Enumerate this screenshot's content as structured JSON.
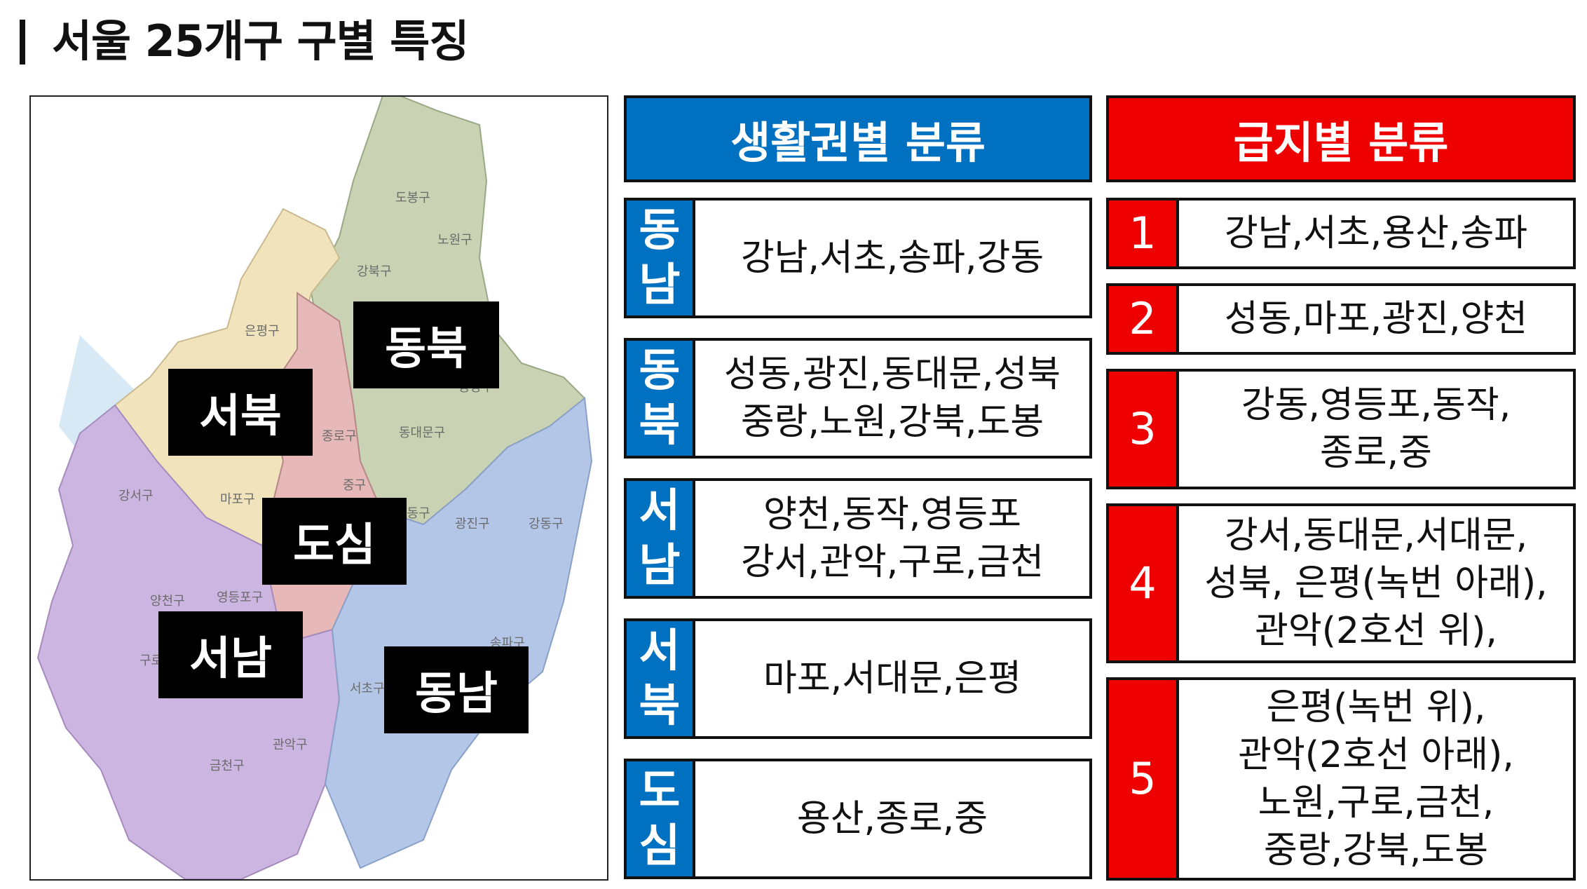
{
  "page": {
    "title": "서울 25개구 구별 특징"
  },
  "map": {
    "region_labels": {
      "dongbuk": "동북",
      "seobuk": "서북",
      "dosim": "도심",
      "seonam": "서남",
      "dongnam": "동남"
    },
    "district_labels": [
      "도봉구",
      "노원구",
      "강북구",
      "은평구",
      "종로구",
      "동대문구",
      "중랑구",
      "강서구",
      "마포구",
      "중구",
      "성동구",
      "광진구",
      "강동구",
      "양천구",
      "영등포구",
      "구로구",
      "송파구",
      "서초구",
      "관악구",
      "금천구"
    ]
  },
  "living_zone": {
    "header": "생활권별 분류",
    "rows": [
      {
        "tag": [
          "동",
          "남"
        ],
        "districts": "강남,서초,송파,강동"
      },
      {
        "tag": [
          "동",
          "북"
        ],
        "districts": "성동,광진,동대문,성북\n중랑,노원,강북,도봉"
      },
      {
        "tag": [
          "서",
          "남"
        ],
        "districts": "양천,동작,영등포\n강서,관악,구로,금천"
      },
      {
        "tag": [
          "서",
          "북"
        ],
        "districts": "마포,서대문,은평"
      },
      {
        "tag": [
          "도",
          "심"
        ],
        "districts": "용산,종로,중"
      }
    ]
  },
  "grade": {
    "header": "급지별 분류",
    "rows": [
      {
        "grade": "1",
        "districts": "강남,서초,용산,송파"
      },
      {
        "grade": "2",
        "districts": "성동,마포,광진,양천"
      },
      {
        "grade": "3",
        "districts": "강동,영등포,동작,\n종로,중"
      },
      {
        "grade": "4",
        "districts": "강서,동대문,서대문,\n성북, 은평(녹번 아래),\n관악(2호선 위),"
      },
      {
        "grade": "5",
        "districts": "은평(녹번 위),\n관악(2호선 아래),\n노원,구로,금천,\n중랑,강북,도봉"
      }
    ]
  },
  "colors": {
    "blue": "#0070C0",
    "red": "#EE0000",
    "map_dongbuk": "#c9d3b4",
    "map_seobuk": "#f1e4bd",
    "map_dosim": "#e6b8b8",
    "map_seonam": "#cdb5e2",
    "map_dongnam": "#b4c6e8",
    "river": "#c8dff2"
  }
}
